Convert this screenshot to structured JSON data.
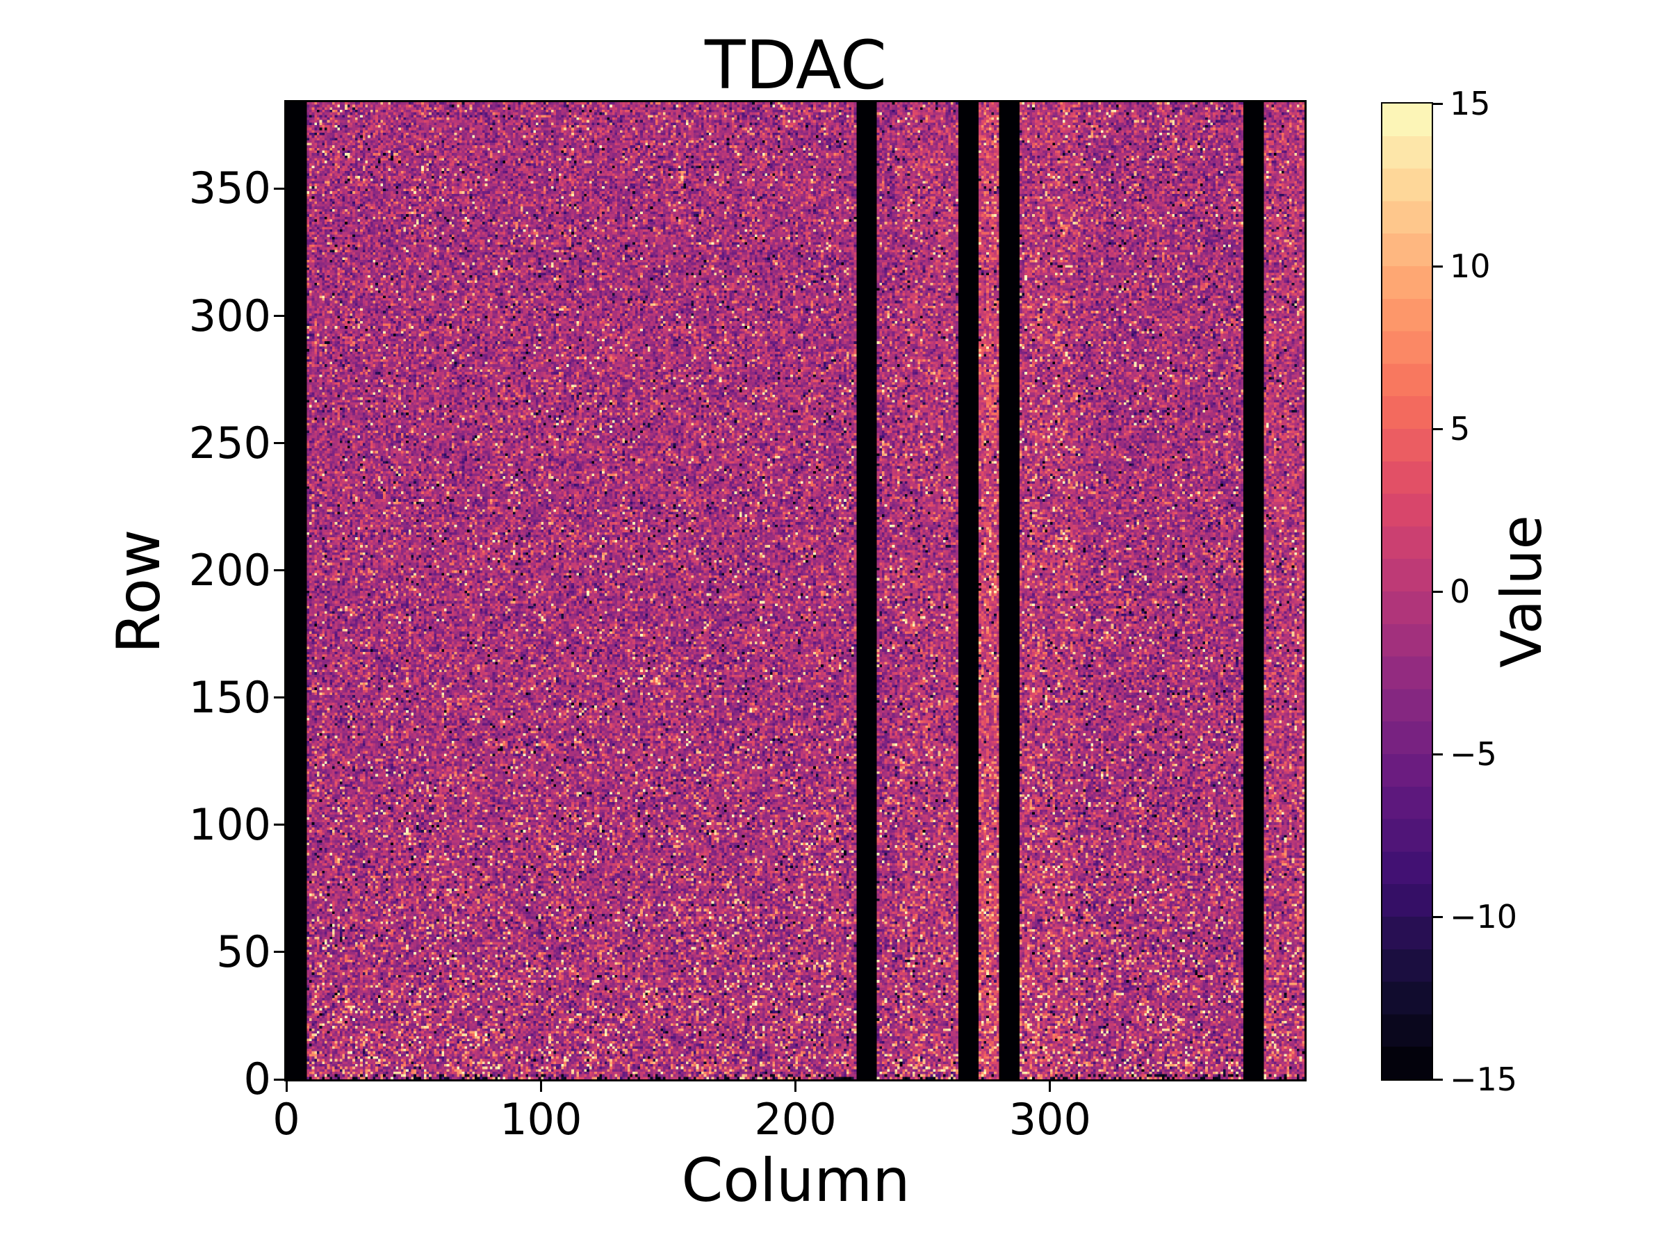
{
  "title": "TDAC",
  "axes": {
    "xlabel": "Column",
    "ylabel": "Row",
    "x_ticks": [
      0,
      100,
      200,
      300
    ],
    "y_ticks": [
      0,
      50,
      100,
      150,
      200,
      250,
      300,
      350
    ],
    "x_range": [
      0,
      400
    ],
    "y_range": [
      0,
      384
    ]
  },
  "colorbar": {
    "label": "Value",
    "tick_labels": [
      "15",
      "10",
      "5",
      "0",
      "−5",
      "−10",
      "−15"
    ],
    "tick_values": [
      15,
      10,
      5,
      0,
      -5,
      -10,
      -15
    ],
    "range_min": -15,
    "range_max": 15,
    "n_bins": 30
  },
  "chart_data": {
    "type": "heatmap",
    "title": "TDAC",
    "xlabel": "Column",
    "ylabel": "Row",
    "value_label": "Value",
    "n_cols": 400,
    "n_rows": 384,
    "x_range": [
      0,
      400
    ],
    "y_range": [
      0,
      384
    ],
    "value_range": [
      -15,
      15
    ],
    "values_are_integers": true,
    "colormap": "magma",
    "colormap_stops": [
      "#000004",
      "#140e36",
      "#3b0f70",
      "#641a80",
      "#8c2981",
      "#b73779",
      "#de4968",
      "#f7705c",
      "#fe9f6d",
      "#fecf92",
      "#fcfdbf"
    ],
    "colorbar_is_discrete": true,
    "colorbar_bins": 30,
    "dead_column_ranges_inclusive": [
      [
        0,
        7
      ],
      [
        224,
        231
      ],
      [
        264,
        271
      ],
      [
        280,
        287
      ],
      [
        376,
        383
      ]
    ],
    "bright_column_ranges_inclusive": [
      [
        272,
        279
      ],
      [
        288,
        310
      ],
      [
        240,
        263
      ],
      [
        384,
        399
      ]
    ],
    "bottom_rows_have_dark_speckles": true,
    "noise_model": {
      "distribution": "gaussian",
      "mean": -1.3,
      "sigma": 3.0,
      "bright_speckle_fraction": 0.05,
      "dark_speckle_fraction": 0.022,
      "bright_speckle_value_range": [
        6,
        15
      ],
      "dark_speckle_value_range": [
        -15,
        -9
      ],
      "seed": 1234567
    }
  }
}
